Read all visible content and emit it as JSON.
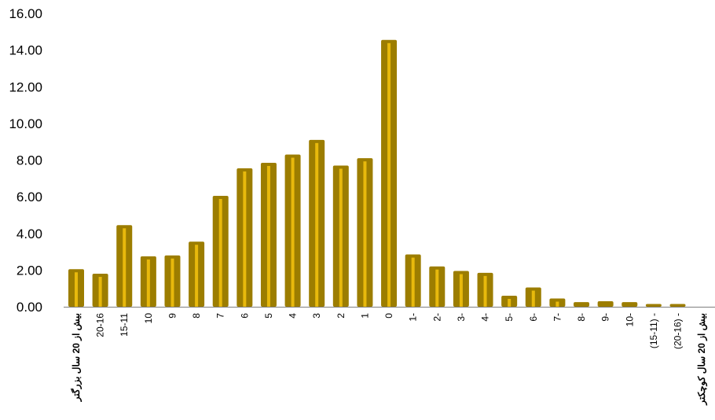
{
  "colors": {
    "bar_outer": "#9c7d00",
    "bar_inner": "#e8b90c",
    "axis": "#7f7f7f"
  },
  "chart_data": {
    "type": "bar",
    "title": "",
    "xlabel": "",
    "ylabel": "",
    "ylim": [
      0,
      16
    ],
    "yticks": [
      "0.00",
      "2.00",
      "4.00",
      "6.00",
      "8.00",
      "10.00",
      "12.00",
      "14.00",
      "16.00"
    ],
    "grid": false,
    "categories": [
      "بیش از 20 سال بزرگتر",
      "20-16",
      "15-11",
      "10",
      "9",
      "8",
      "7",
      "6",
      "5",
      "4",
      "3",
      "2",
      "1",
      "0",
      "1-",
      "2-",
      "3-",
      "4-",
      "5-",
      "6-",
      "7-",
      "8-",
      "9-",
      "10-",
      "(15-11) -",
      "(20-16) -",
      "بیش از 20 سال کوچکتر"
    ],
    "bold_categories": [
      "بیش از 20 سال بزرگتر",
      "بیش از 20 سال کوچکتر"
    ],
    "values": [
      2.05,
      1.8,
      4.45,
      2.75,
      2.8,
      3.55,
      6.05,
      7.55,
      7.85,
      8.3,
      9.1,
      7.7,
      8.1,
      14.55,
      2.85,
      2.2,
      1.95,
      1.85,
      0.6,
      1.05,
      0.45,
      0.25,
      0.3,
      0.25,
      0.15,
      0.15,
      0
    ]
  }
}
